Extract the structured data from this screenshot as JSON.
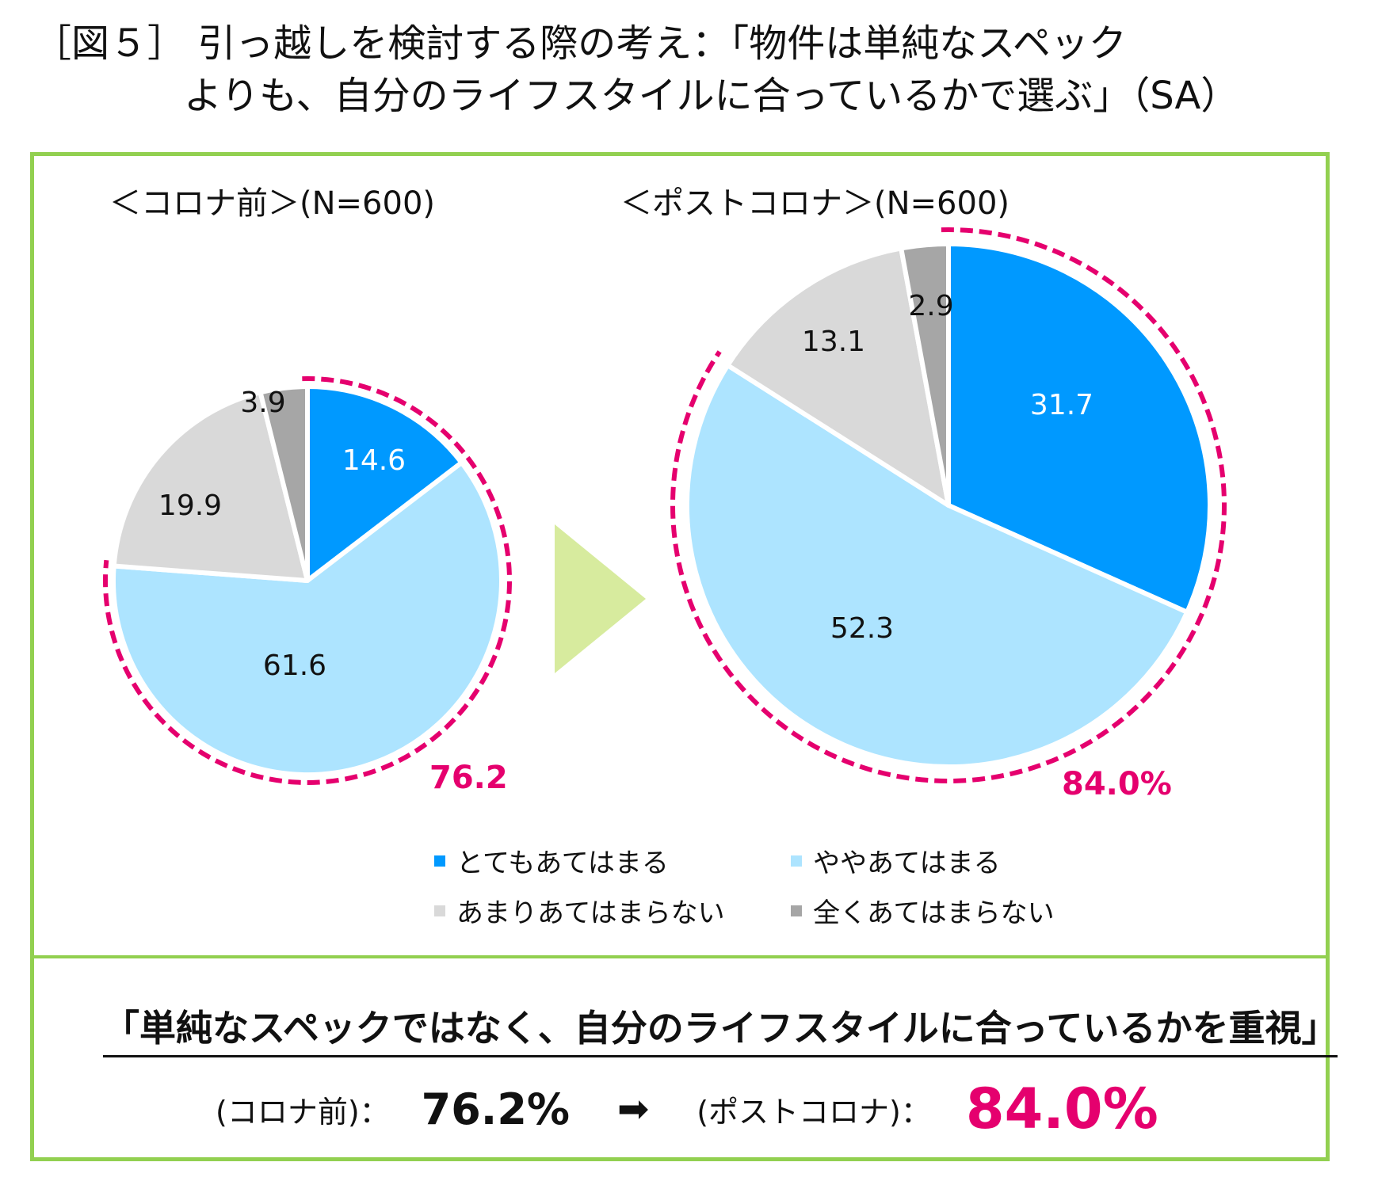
{
  "title": {
    "line1": "［図５］ 引っ越しを検討する際の考え：「物件は単純なスペック",
    "line2": "よりも、自分のライフスタイルに合っているかで選ぶ」（SA）"
  },
  "colors": {
    "very": "#0099ff",
    "somewhat": "#ade4ff",
    "not_much": "#d9d9d9",
    "not_at_all": "#a6a6a6",
    "highlight": "#e5006e",
    "frame": "#92d050",
    "arrow": "#d7eb9e"
  },
  "chart_data": [
    {
      "type": "pie",
      "title": "＜コロナ前＞(N=600)",
      "categories": [
        "とてもあてはまる",
        "ややあてはまる",
        "あまりあてはまらない",
        "全くあてはまらない"
      ],
      "values": [
        14.6,
        61.6,
        19.9,
        3.9
      ],
      "labels": [
        "14.6",
        "61.6",
        "19.9",
        "3.9"
      ],
      "highlight_total": "76.2",
      "start_angle": 0,
      "direction": "clockwise"
    },
    {
      "type": "pie",
      "title": "＜ポストコロナ＞(N=600)",
      "categories": [
        "とてもあてはまる",
        "ややあてはまる",
        "あまりあてはまらない",
        "全くあてはまらない"
      ],
      "values": [
        31.7,
        52.3,
        13.1,
        2.9
      ],
      "labels": [
        "31.7",
        "52.3",
        "13.1",
        "2.9"
      ],
      "highlight_total": "84.0%",
      "start_angle": 0,
      "direction": "clockwise"
    }
  ],
  "legend": [
    {
      "label": "とてもあてはまる",
      "color": "#0099ff"
    },
    {
      "label": "ややあてはまる",
      "color": "#ade4ff"
    },
    {
      "label": "あまりあてはまらない",
      "color": "#d9d9d9"
    },
    {
      "label": "全くあてはまらない",
      "color": "#a6a6a6"
    }
  ],
  "summary": {
    "headline": "「単純なスペックではなく、自分のライフスタイルに合っているかを重視」",
    "before_label": "(コロナ前)：",
    "before_value": "76.2%",
    "arrow": "➡",
    "after_label": "(ポストコロナ)：",
    "after_value": "84.0%"
  }
}
